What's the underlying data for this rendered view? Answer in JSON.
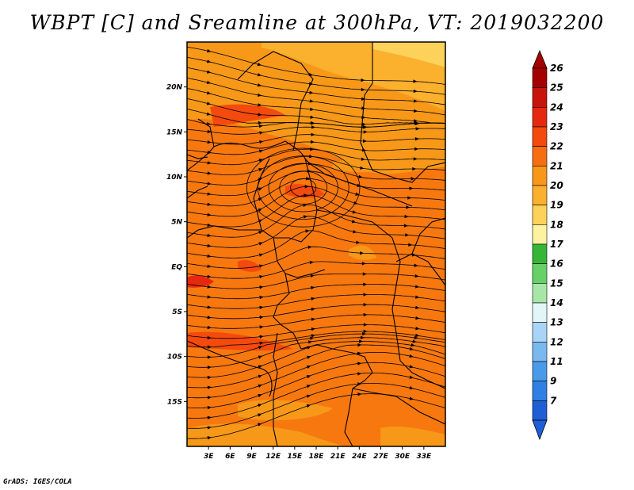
{
  "title": "WBPT [C] and Sreamline at 300hPa, VT: 2019032200",
  "footer": "GrADS: IGES/COLA",
  "map": {
    "lon_range": [
      0,
      36
    ],
    "lat_range": [
      -20,
      25
    ],
    "x_ticks": [
      "3E",
      "6E",
      "9E",
      "12E",
      "15E",
      "18E",
      "21E",
      "24E",
      "27E",
      "30E",
      "33E"
    ],
    "x_tick_values": [
      3,
      6,
      9,
      12,
      15,
      18,
      21,
      24,
      27,
      30,
      33
    ],
    "y_ticks": [
      "20N",
      "15N",
      "10N",
      "5N",
      "EQ",
      "5S",
      "10S",
      "15S"
    ],
    "y_tick_values": [
      20,
      15,
      10,
      5,
      0,
      -5,
      -10,
      -15
    ]
  },
  "colorbar": {
    "labels": [
      "26",
      "25",
      "24",
      "23",
      "22",
      "21",
      "20",
      "19",
      "18",
      "17",
      "16",
      "15",
      "14",
      "13",
      "12",
      "11",
      "9",
      "7"
    ],
    "colors": [
      "#a50000",
      "#c8140a",
      "#e6280f",
      "#f44a0e",
      "#f76e12",
      "#f89818",
      "#fbb02e",
      "#fcd25a",
      "#fdf2a0",
      "#37b537",
      "#67d067",
      "#a7e6a7",
      "#e2f6f8",
      "#a9d4f5",
      "#7ab8f0",
      "#4a9aea",
      "#2f7fe4",
      "#1e5fd6"
    ]
  }
}
